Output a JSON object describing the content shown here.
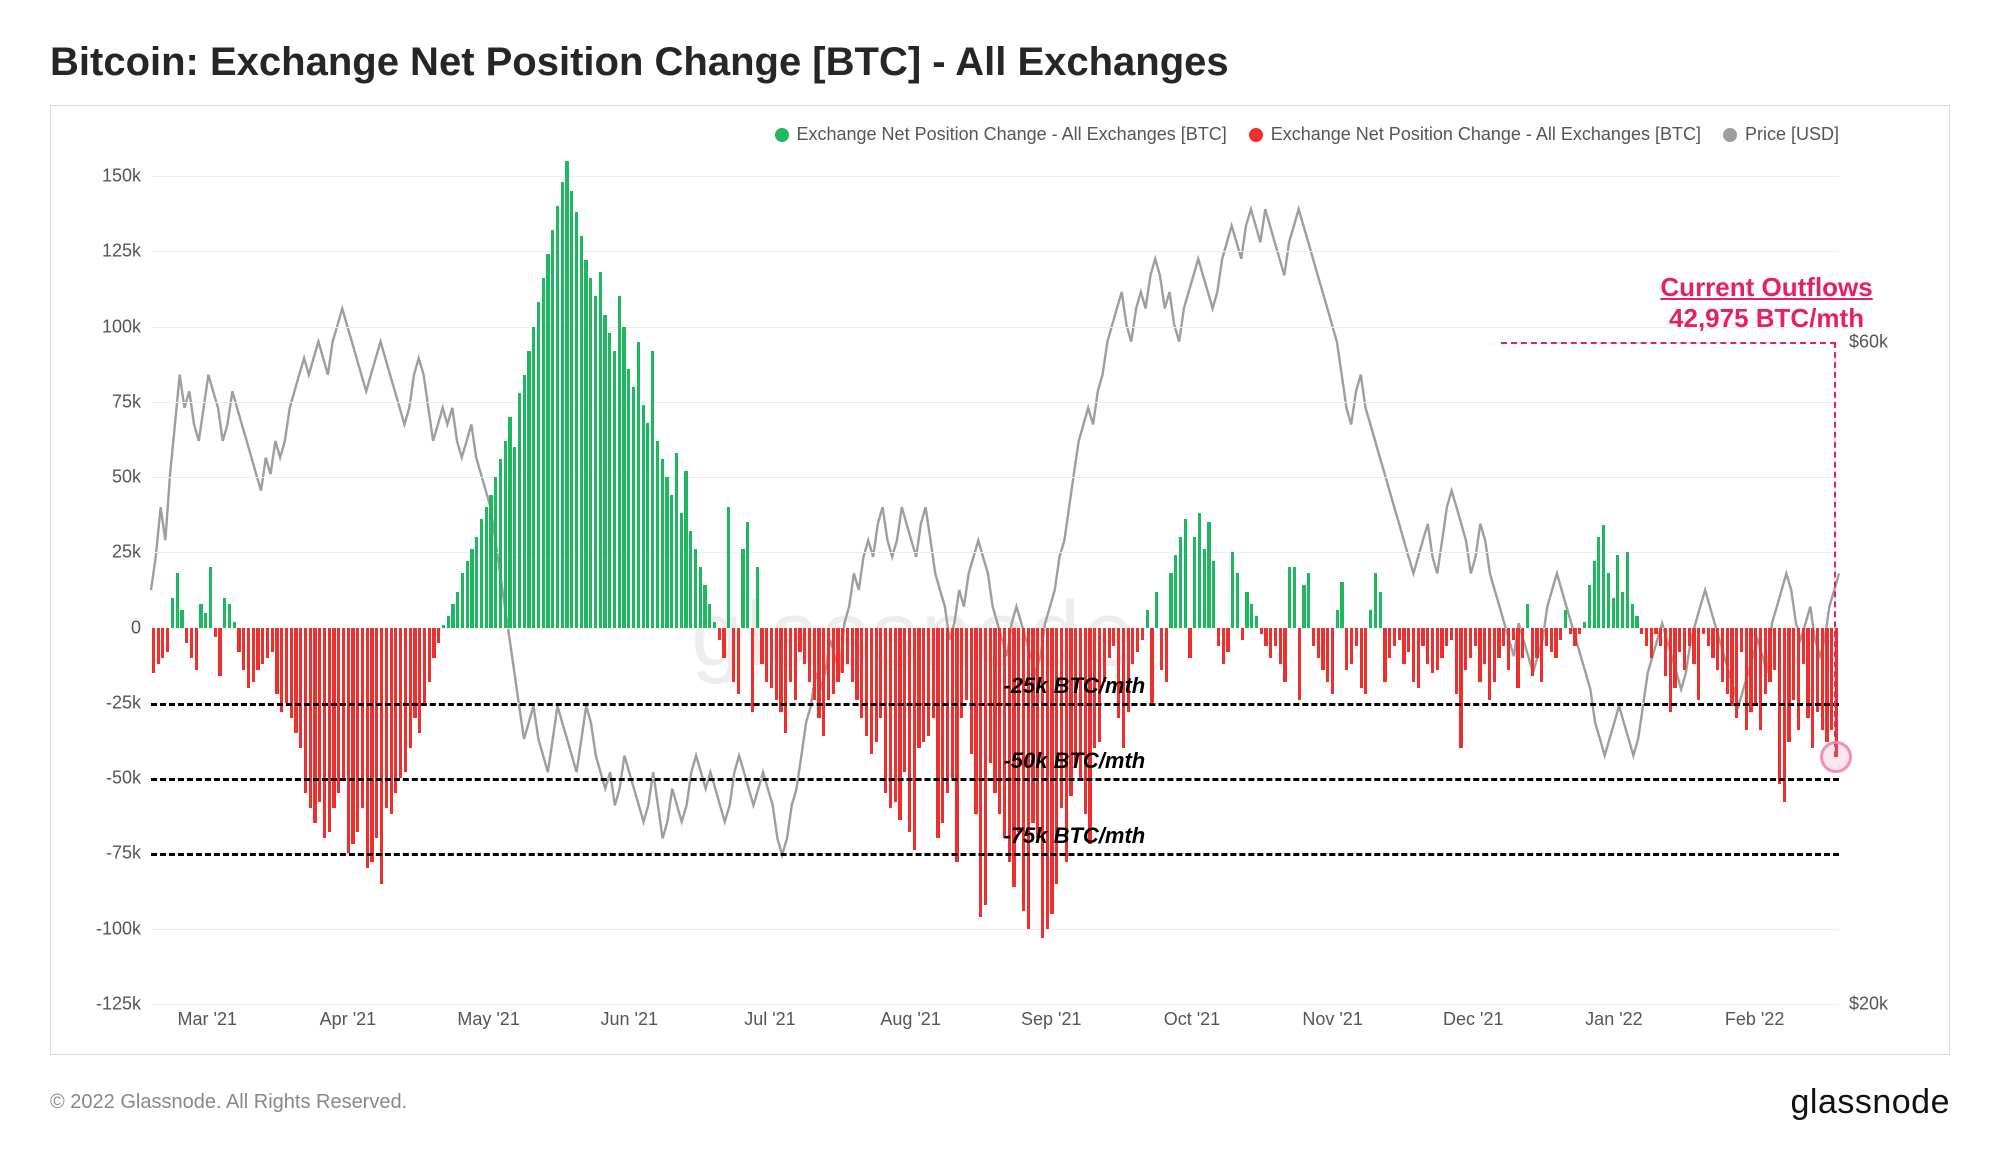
{
  "title": "Bitcoin: Exchange Net Position Change [BTC] - All Exchanges",
  "copyright": "© 2022 Glassnode. All Rights Reserved.",
  "brand": "glassnode",
  "watermark": "glassnode",
  "legend": {
    "series_pos": {
      "label": "Exchange Net Position Change - All Exchanges [BTC]",
      "color": "#1eb860"
    },
    "series_neg": {
      "label": "Exchange Net Position Change - All Exchanges [BTC]",
      "color": "#ef2e2e"
    },
    "price": {
      "label": "Price [USD]",
      "color": "#9e9e9e"
    }
  },
  "annotation": {
    "title": "Current Outflows",
    "value": "42,975 BTC/mth",
    "color": "#e91e63"
  },
  "ref_lines": [
    {
      "value": -25000,
      "label": "-25k BTC/mth"
    },
    {
      "value": -50000,
      "label": "-50k BTC/mth"
    },
    {
      "value": -75000,
      "label": "-75k BTC/mth"
    }
  ],
  "chart": {
    "type": "bar+line",
    "background_color": "#ffffff",
    "grid_color": "#eeeeee",
    "bar_pos_color": "#1eb860",
    "bar_neg_color": "#ef2e2e",
    "price_line_color": "#9e9e9e",
    "price_line_width": 1.5,
    "bar_width_ratio": 0.68,
    "left_axis": {
      "min": -125000,
      "max": 150000,
      "step": 25000,
      "labels": [
        "-125k",
        "-100k",
        "-75k",
        "-50k",
        "-25k",
        "0",
        "25k",
        "50k",
        "75k",
        "100k",
        "125k",
        "150k"
      ]
    },
    "right_axis": {
      "min": 20000,
      "max": 70000,
      "ticks": [
        {
          "v": 20000,
          "label": "$20k"
        },
        {
          "v": 60000,
          "label": "$60k"
        }
      ]
    },
    "x_labels": [
      "Mar '21",
      "Apr '21",
      "May '21",
      "Jun '21",
      "Jul '21",
      "Aug '21",
      "Sep '21",
      "Oct '21",
      "Nov '21",
      "Dec '21",
      "Jan '22",
      "Feb '22"
    ],
    "bar_values": [
      -15,
      -12,
      -10,
      -8,
      10,
      18,
      6,
      -5,
      -10,
      -14,
      8,
      5,
      20,
      -3,
      -16,
      10,
      8,
      2,
      -8,
      -14,
      -20,
      -18,
      -14,
      -12,
      -10,
      -8,
      -22,
      -28,
      -25,
      -30,
      -35,
      -40,
      -55,
      -60,
      -65,
      -58,
      -70,
      -68,
      -60,
      -55,
      -50,
      -75,
      -72,
      -68,
      -60,
      -80,
      -78,
      -70,
      -85,
      -60,
      -62,
      -55,
      -50,
      -48,
      -40,
      -30,
      -35,
      -25,
      -18,
      -10,
      -5,
      1,
      4,
      8,
      12,
      18,
      22,
      26,
      30,
      36,
      40,
      44,
      50,
      56,
      62,
      70,
      60,
      78,
      84,
      92,
      100,
      108,
      116,
      124,
      132,
      140,
      148,
      155,
      145,
      138,
      130,
      122,
      116,
      110,
      118,
      104,
      98,
      92,
      110,
      100,
      86,
      80,
      95,
      74,
      68,
      92,
      62,
      56,
      50,
      44,
      58,
      38,
      52,
      32,
      26,
      20,
      14,
      8,
      2,
      -4,
      -10,
      40,
      -18,
      -22,
      26,
      35,
      -28,
      20,
      -12,
      -18,
      -20,
      -24,
      -28,
      -35,
      -18,
      -24,
      -8,
      -12,
      -18,
      -24,
      -30,
      -36,
      -24,
      -22,
      -18,
      -15,
      -12,
      -18,
      -24,
      -30,
      -36,
      -42,
      -38,
      -30,
      -55,
      -60,
      -58,
      -64,
      -48,
      -68,
      -74,
      -40,
      -38,
      -36,
      -30,
      -70,
      -65,
      -55,
      -50,
      -78,
      -30,
      -24,
      -42,
      -62,
      -96,
      -92,
      -45,
      -55,
      -62,
      -70,
      -78,
      -86,
      -68,
      -94,
      -100,
      -65,
      -70,
      -103,
      -100,
      -95,
      -85,
      -60,
      -78,
      -56,
      -45,
      -50,
      -62,
      -72,
      -40,
      -38,
      -18,
      -10,
      -6,
      -30,
      -40,
      -28,
      -12,
      -8,
      -4,
      6,
      -25,
      12,
      -14,
      -18,
      18,
      24,
      30,
      36,
      -10,
      30,
      38,
      26,
      35,
      22,
      -6,
      -12,
      -8,
      25,
      18,
      -4,
      12,
      8,
      4,
      -2,
      -6,
      -10,
      -6,
      -12,
      -18,
      20,
      20,
      -24,
      14,
      18,
      -6,
      -10,
      -14,
      -18,
      -22,
      6,
      15,
      -14,
      -12,
      -6,
      -20,
      -22,
      6,
      18,
      12,
      -18,
      -10,
      -6,
      -4,
      -12,
      -8,
      -18,
      -20,
      -6,
      -12,
      -15,
      -14,
      -10,
      -6,
      -4,
      -22,
      -40,
      -14,
      -10,
      -6,
      -18,
      -12,
      -24,
      -18,
      -10,
      -6,
      -14,
      -4,
      -20,
      -10,
      8,
      -16,
      -10,
      -18,
      -6,
      -8,
      -10,
      -4,
      6,
      -2,
      -6,
      -2,
      2,
      14,
      22,
      30,
      34,
      18,
      10,
      24,
      12,
      25,
      8,
      4,
      -2,
      -6,
      -10,
      -2,
      -6,
      -16,
      -28,
      -20,
      -8,
      -14,
      -6,
      -12,
      -24,
      -2,
      -6,
      -10,
      -14,
      -18,
      -22,
      -26,
      -30,
      -8,
      -34,
      -28,
      -26,
      -34,
      -22,
      -18,
      -14,
      -52,
      -58,
      -38,
      -24,
      -34,
      -12,
      -30,
      -40,
      -28,
      -34,
      -38,
      -34,
      -43
    ],
    "price_values": [
      45,
      47,
      50,
      48,
      52,
      55,
      58,
      56,
      57,
      55,
      54,
      56,
      58,
      57,
      56,
      54,
      55,
      57,
      56,
      55,
      54,
      53,
      52,
      51,
      53,
      52,
      54,
      53,
      54,
      56,
      57,
      58,
      59,
      58,
      59,
      60,
      59,
      58,
      60,
      61,
      62,
      61,
      60,
      59,
      58,
      57,
      58,
      59,
      60,
      59,
      58,
      57,
      56,
      55,
      56,
      58,
      59,
      58,
      56,
      54,
      55,
      56,
      55,
      56,
      54,
      53,
      54,
      55,
      53,
      52,
      51,
      50,
      48,
      46,
      44,
      42,
      40,
      38,
      36,
      37,
      38,
      36,
      35,
      34,
      36,
      38,
      37,
      36,
      35,
      34,
      36,
      38,
      37,
      35,
      34,
      33,
      34,
      32,
      33,
      35,
      34,
      33,
      32,
      31,
      32,
      34,
      32,
      30,
      31,
      33,
      32,
      31,
      32,
      34,
      35,
      34,
      33,
      34,
      33,
      32,
      31,
      32,
      34,
      35,
      34,
      33,
      32,
      33,
      34,
      33,
      32,
      30,
      29,
      30,
      32,
      33,
      35,
      37,
      38,
      40,
      39,
      40,
      42,
      41,
      40,
      43,
      44,
      46,
      45,
      47,
      48,
      47,
      49,
      50,
      48,
      47,
      48,
      50,
      49,
      48,
      47,
      49,
      50,
      48,
      46,
      45,
      44,
      42,
      43,
      45,
      44,
      46,
      47,
      48,
      47,
      46,
      44,
      43,
      42,
      41,
      43,
      44,
      43,
      42,
      41,
      40,
      41,
      43,
      44,
      45,
      47,
      48,
      50,
      52,
      54,
      55,
      56,
      55,
      57,
      58,
      60,
      61,
      62,
      63,
      61,
      60,
      62,
      63,
      62,
      64,
      65,
      64,
      62,
      63,
      61,
      60,
      62,
      63,
      64,
      65,
      64,
      63,
      62,
      63,
      65,
      66,
      67,
      66,
      65,
      67,
      68,
      67,
      66,
      68,
      67,
      66,
      65,
      64,
      66,
      67,
      68,
      67,
      66,
      65,
      64,
      63,
      62,
      61,
      60,
      58,
      56,
      55,
      57,
      58,
      56,
      55,
      54,
      53,
      52,
      51,
      50,
      49,
      48,
      47,
      46,
      47,
      48,
      49,
      47,
      46,
      48,
      50,
      51,
      50,
      49,
      48,
      46,
      47,
      49,
      48,
      46,
      45,
      44,
      43,
      42,
      41,
      43,
      42,
      41,
      40,
      41,
      42,
      44,
      45,
      46,
      45,
      44,
      43,
      42,
      41,
      40,
      39,
      37,
      36,
      35,
      36,
      37,
      38,
      37,
      36,
      35,
      36,
      38,
      40,
      41,
      42,
      43,
      42,
      41,
      40,
      39,
      40,
      42,
      43,
      44,
      45,
      44,
      43,
      42,
      41,
      40,
      39,
      38,
      39,
      40,
      41,
      42,
      41,
      40,
      43,
      44,
      45,
      46,
      45,
      43,
      42,
      43,
      44,
      42,
      41,
      42,
      44,
      45,
      46
    ]
  }
}
